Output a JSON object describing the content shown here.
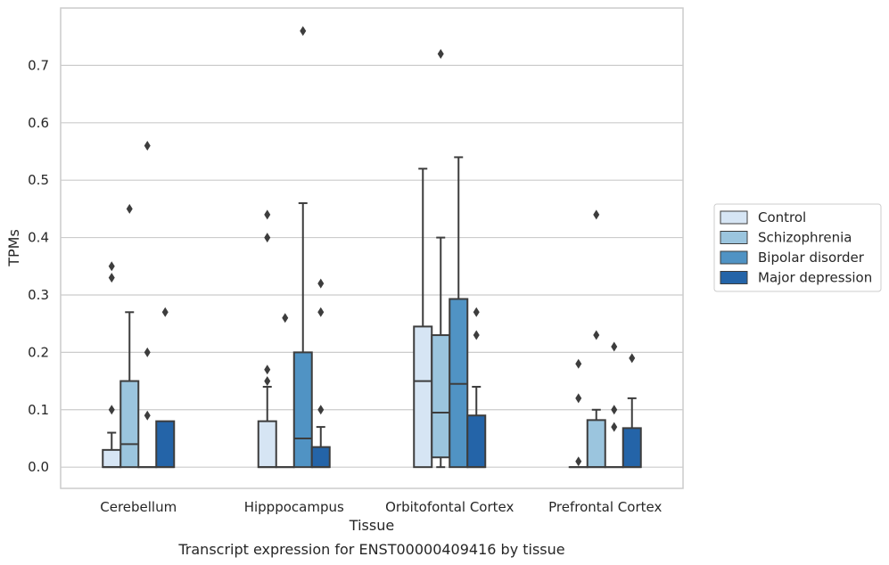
{
  "chart_data": {
    "type": "box",
    "xlabel": "Tissue",
    "ylabel": "TPMs",
    "caption": "Transcript expression for ENST00000409416 by tissue",
    "ylim": [
      -0.037,
      0.8
    ],
    "yticks": [
      "0.0",
      "0.1",
      "0.2",
      "0.3",
      "0.4",
      "0.5",
      "0.6",
      "0.7"
    ],
    "grid": "horizontal",
    "legend_position": "right",
    "categories": [
      "Cerebellum",
      "Hipppocampus",
      "Orbitofontal Cortex",
      "Prefrontal Cortex"
    ],
    "series": [
      {
        "name": "Control",
        "color": "#d6e5f4",
        "boxes": [
          {
            "whislo": 0.0,
            "q1": 0.0,
            "med": 0.0,
            "q3": 0.03,
            "whishi": 0.06,
            "fliers": [
              0.1,
              0.33,
              0.35
            ]
          },
          {
            "whislo": 0.0,
            "q1": 0.0,
            "med": 0.0,
            "q3": 0.08,
            "whishi": 0.14,
            "fliers": [
              0.15,
              0.17,
              0.4,
              0.44
            ]
          },
          {
            "whislo": 0.0,
            "q1": 0.0,
            "med": 0.15,
            "q3": 0.245,
            "whishi": 0.52,
            "fliers": []
          },
          {
            "whislo": 0.0,
            "q1": 0.0,
            "med": 0.0,
            "q3": 0.0,
            "whishi": 0.0,
            "fliers": [
              0.01,
              0.12,
              0.18
            ]
          }
        ]
      },
      {
        "name": "Schizophrenia",
        "color": "#9bc5de",
        "boxes": [
          {
            "whislo": 0.0,
            "q1": 0.0,
            "med": 0.04,
            "q3": 0.15,
            "whishi": 0.27,
            "fliers": [
              0.45
            ]
          },
          {
            "whislo": 0.0,
            "q1": 0.0,
            "med": 0.0,
            "q3": 0.0,
            "whishi": 0.0,
            "fliers": [
              0.26
            ]
          },
          {
            "whislo": 0.0,
            "q1": 0.017,
            "med": 0.095,
            "q3": 0.23,
            "whishi": 0.4,
            "fliers": [
              0.72
            ]
          },
          {
            "whislo": 0.0,
            "q1": 0.0,
            "med": 0.0,
            "q3": 0.082,
            "whishi": 0.1,
            "fliers": [
              0.23,
              0.44
            ]
          }
        ]
      },
      {
        "name": "Bipolar disorder",
        "color": "#5093c4",
        "boxes": [
          {
            "whislo": 0.0,
            "q1": 0.0,
            "med": 0.0,
            "q3": 0.0,
            "whishi": 0.0,
            "fliers": [
              0.09,
              0.2,
              0.56
            ]
          },
          {
            "whislo": 0.0,
            "q1": 0.0,
            "med": 0.05,
            "q3": 0.2,
            "whishi": 0.46,
            "fliers": [
              0.76
            ]
          },
          {
            "whislo": 0.0,
            "q1": 0.0,
            "med": 0.145,
            "q3": 0.293,
            "whishi": 0.54,
            "fliers": []
          },
          {
            "whislo": 0.0,
            "q1": 0.0,
            "med": 0.0,
            "q3": 0.0,
            "whishi": 0.0,
            "fliers": [
              0.07,
              0.1,
              0.21
            ]
          }
        ]
      },
      {
        "name": "Major depression",
        "color": "#2464a8",
        "boxes": [
          {
            "whislo": 0.0,
            "q1": 0.0,
            "med": 0.0,
            "q3": 0.08,
            "whishi": 0.08,
            "fliers": [
              0.27
            ]
          },
          {
            "whislo": 0.0,
            "q1": 0.0,
            "med": 0.0,
            "q3": 0.035,
            "whishi": 0.07,
            "fliers": [
              0.1,
              0.27,
              0.32
            ]
          },
          {
            "whislo": 0.0,
            "q1": 0.0,
            "med": 0.0,
            "q3": 0.09,
            "whishi": 0.14,
            "fliers": [
              0.23,
              0.27
            ]
          },
          {
            "whislo": 0.0,
            "q1": 0.0,
            "med": 0.0,
            "q3": 0.068,
            "whishi": 0.12,
            "fliers": [
              0.19
            ]
          }
        ]
      }
    ]
  }
}
